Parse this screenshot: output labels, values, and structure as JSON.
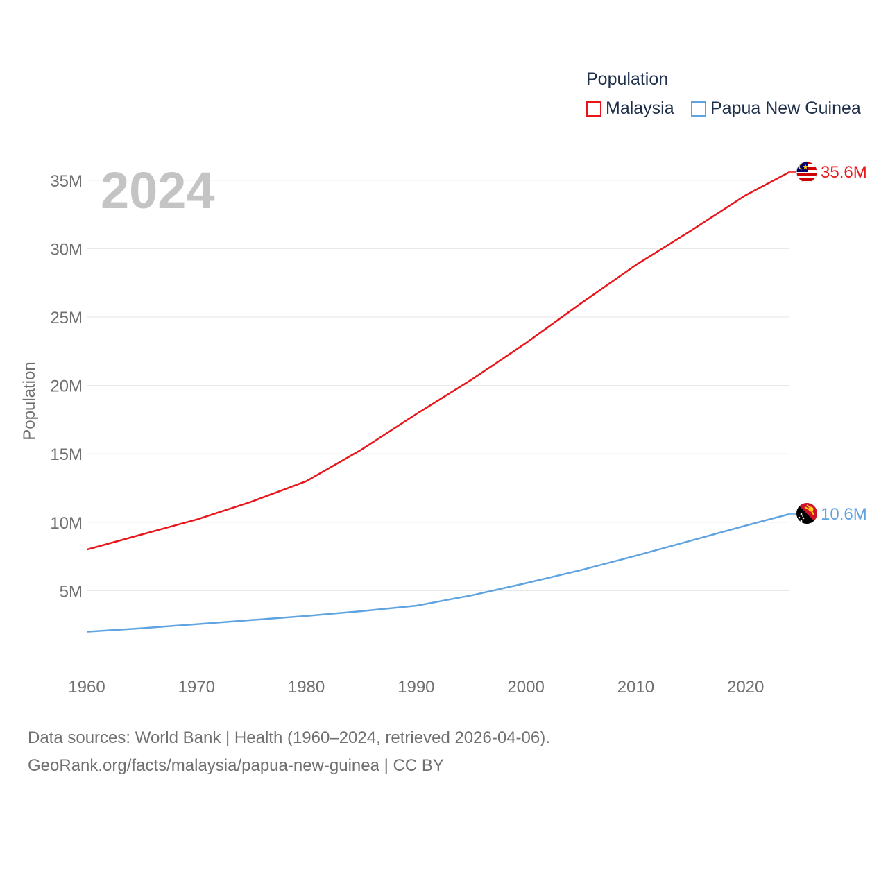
{
  "legend": {
    "title": "Population",
    "items": [
      {
        "label": "Malaysia",
        "color": "#e8161b"
      },
      {
        "label": "Papua New Guinea",
        "color": "#5fa3e0"
      }
    ]
  },
  "year_badge": "2024",
  "end_labels": [
    "35.6M",
    "10.6M"
  ],
  "footer": {
    "line1": "Data sources: World Bank | Health (1960–2024, retrieved 2026-04-06).",
    "line2": "GeoRank.org/facts/malaysia/papua-new-guinea | CC BY"
  },
  "chart_data": {
    "type": "line",
    "title": "Population",
    "xlabel": "",
    "ylabel": "Population",
    "xlim": [
      1960,
      2024
    ],
    "ylim": [
      0,
      36000000
    ],
    "x_ticks": [
      1960,
      1970,
      1980,
      1990,
      2000,
      2010,
      2020
    ],
    "y_ticks": [
      5000000,
      10000000,
      15000000,
      20000000,
      25000000,
      30000000,
      35000000
    ],
    "y_tick_labels": [
      "5M",
      "10M",
      "15M",
      "20M",
      "25M",
      "30M",
      "35M"
    ],
    "grid": true,
    "legend_position": "top-right",
    "x": [
      1960,
      1965,
      1970,
      1975,
      1980,
      1985,
      1990,
      1995,
      2000,
      2005,
      2010,
      2015,
      2020,
      2024
    ],
    "series": [
      {
        "name": "Malaysia",
        "color": "#e8161b",
        "values": [
          8000000,
          9100000,
          10200000,
          11500000,
          13000000,
          15300000,
          17900000,
          20400000,
          23100000,
          26000000,
          28800000,
          31300000,
          33900000,
          35600000
        ],
        "end_label": "35.6M"
      },
      {
        "name": "Papua New Guinea",
        "color": "#5fa3e0",
        "values": [
          2000000,
          2250000,
          2550000,
          2850000,
          3150000,
          3500000,
          3900000,
          4650000,
          5550000,
          6500000,
          7550000,
          8650000,
          9750000,
          10600000
        ],
        "end_label": "10.6M"
      }
    ]
  }
}
